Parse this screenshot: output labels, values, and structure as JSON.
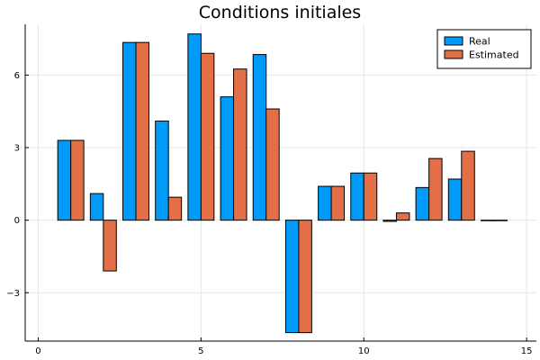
{
  "chart_data": {
    "type": "bar",
    "title": "Conditions initiales",
    "xlabel": "",
    "ylabel": "",
    "x": [
      1,
      2,
      3,
      4,
      5,
      6,
      7,
      8,
      9,
      10,
      11,
      12,
      13,
      14
    ],
    "xlim": [
      -0.4,
      15.3
    ],
    "ylim": [
      -5.0,
      8.1
    ],
    "xticks": [
      0,
      5,
      10,
      15
    ],
    "yticks": [
      -3,
      0,
      3,
      6
    ],
    "ytick_labels": [
      "−3",
      "0",
      "3",
      "6"
    ],
    "grid": true,
    "legend_position": "top-right",
    "series": [
      {
        "name": "Real",
        "color": "#009af9",
        "values": [
          3.3,
          1.1,
          7.35,
          4.1,
          7.7,
          5.1,
          6.85,
          -4.65,
          1.4,
          1.95,
          -0.05,
          1.35,
          1.7,
          0.0
        ]
      },
      {
        "name": "Estimated",
        "color": "#e26f46",
        "values": [
          3.3,
          -2.1,
          7.35,
          0.95,
          6.9,
          6.25,
          4.6,
          -4.65,
          1.4,
          1.95,
          0.3,
          2.55,
          2.85,
          0.0
        ]
      }
    ]
  }
}
